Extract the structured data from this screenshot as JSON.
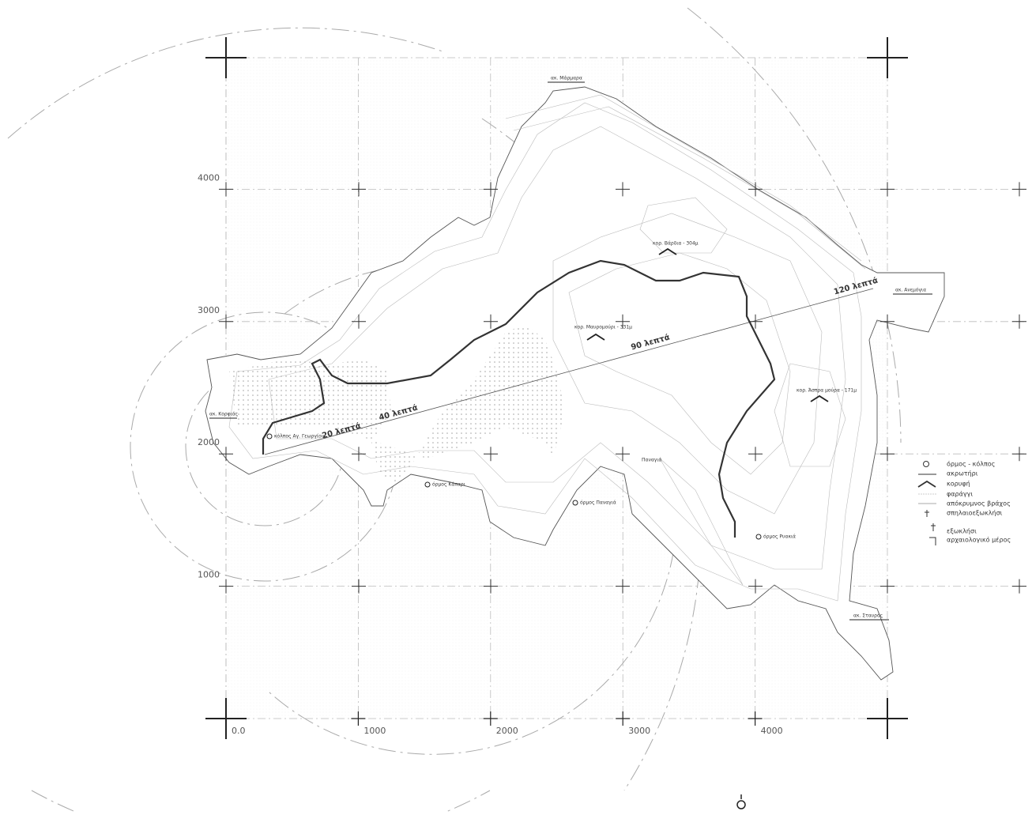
{
  "map": {
    "xticks": [
      {
        "value": 0,
        "label": "0.0"
      },
      1000,
      2000,
      3000,
      4000
    ],
    "yticks": [
      1000,
      2000,
      3000,
      4000
    ],
    "time_labels": [
      "20 λεπτά",
      "40 λεπτά",
      "90 λεπτά",
      "120 λεπτά"
    ],
    "places": [
      "ακ. Μάρμαρα",
      "κορ. Βάρδια - 304μ",
      "κορ. Μαυρομούρι - 331μ",
      "κορ. Άσπρα μούρα - 171μ",
      "ακ. Ανεμόγια",
      "ακ. Κορφιάς",
      "κόλπος Αγ. Γεωργίου",
      "όρμος Κάπαρι",
      "όρμος Παναγιά",
      "όρμος Ρυακιά",
      "ακ. Σταυρός",
      "Παναγιά"
    ],
    "legend": [
      "όρμος - κόλπος",
      "ακρωτήρι",
      "κορυφή",
      "φαράγγι",
      "απόκρυμνος βράχος",
      "σπηλαιοεξωκλήσι",
      "εξωκλήσι",
      "αρχαιολογικό μέρος"
    ]
  }
}
